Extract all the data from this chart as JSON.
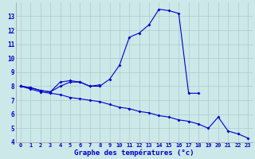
{
  "title": "",
  "xlabel": "Graphe des températures (°c)",
  "background_color": "#cce8e8",
  "line_color": "#0000cc",
  "x": [
    0,
    1,
    2,
    3,
    4,
    5,
    6,
    7,
    8,
    9,
    10,
    11,
    12,
    13,
    14,
    15,
    16,
    17,
    18,
    19,
    20,
    21,
    22,
    23
  ],
  "line1": [
    8.0,
    7.9,
    7.7,
    7.6,
    8.0,
    8.3,
    8.3,
    8.0,
    8.0,
    8.5,
    9.5,
    11.5,
    11.8,
    12.4,
    13.5,
    13.4,
    13.2,
    7.5,
    7.5,
    null,
    null,
    null,
    null,
    null
  ],
  "line2": [
    8.0,
    7.9,
    7.7,
    7.6,
    8.3,
    8.4,
    8.3,
    8.0,
    8.1,
    null,
    null,
    null,
    null,
    null,
    null,
    null,
    null,
    null,
    null,
    null,
    null,
    null,
    null,
    null
  ],
  "line3": [
    8.0,
    7.8,
    7.6,
    7.5,
    7.4,
    7.2,
    7.1,
    7.0,
    6.9,
    6.7,
    6.5,
    6.4,
    6.2,
    6.1,
    5.9,
    5.8,
    5.6,
    5.5,
    5.3,
    5.0,
    5.8,
    4.8,
    4.6,
    4.3
  ],
  "ylim": [
    4,
    14
  ],
  "xlim": [
    -0.5,
    23.5
  ],
  "yticks": [
    4,
    5,
    6,
    7,
    8,
    9,
    10,
    11,
    12,
    13
  ],
  "xticks": [
    0,
    1,
    2,
    3,
    4,
    5,
    6,
    7,
    8,
    9,
    10,
    11,
    12,
    13,
    14,
    15,
    16,
    17,
    18,
    19,
    20,
    21,
    22,
    23
  ],
  "tick_fontsize": 5,
  "xlabel_fontsize": 6.5,
  "grid_color": "#aacccc",
  "marker_size": 2.0,
  "line_width": 0.8
}
